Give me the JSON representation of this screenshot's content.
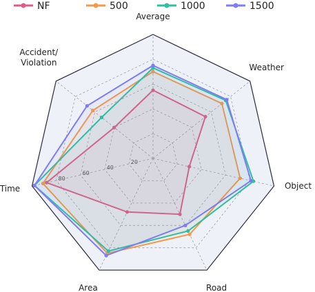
{
  "chart_data": {
    "type": "radar",
    "axes": [
      "Average",
      "Weather",
      "Object",
      "Road",
      "Area",
      "Time",
      "Accident/\nViolation"
    ],
    "rmax": 100,
    "rings": [
      20,
      40,
      60,
      80,
      100
    ],
    "tick_labels": [
      "20",
      "40",
      "60",
      "80"
    ],
    "legend_position": "top",
    "series": [
      {
        "name": "NF",
        "color": "#e05a87",
        "values": [
          55,
          54,
          30,
          50,
          48,
          88,
          40
        ]
      },
      {
        "name": "500",
        "color": "#f29a4a",
        "values": [
          70,
          71,
          72,
          68,
          85,
          91,
          62
        ]
      },
      {
        "name": "1000",
        "color": "#2fbfa0",
        "values": [
          73,
          75,
          83,
          65,
          83,
          98,
          53
        ]
      },
      {
        "name": "1500",
        "color": "#7f7cf0",
        "values": [
          75,
          76,
          81,
          60,
          87,
          98,
          68
        ]
      }
    ]
  }
}
